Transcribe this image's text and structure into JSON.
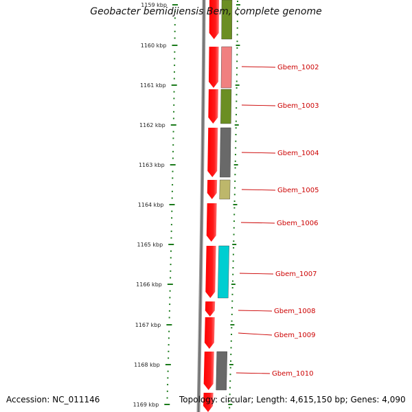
{
  "title": "Geobacter bemidjiensis Bem, complete genome",
  "footer": {
    "accession": "Accession: NC_011146",
    "topology": "Topology: circular; Length: 4,615,150 bp; Genes: 4,090"
  },
  "ruler": {
    "unit": "kbp",
    "ticks": [
      "1159 kbp",
      "1160 kbp",
      "1161 kbp",
      "1162 kbp",
      "1163 kbp",
      "1164 kbp",
      "1165 kbp",
      "1166 kbp",
      "1167 kbp",
      "1168 kbp",
      "1169 kbp"
    ]
  },
  "colors": {
    "gene_red": "#ff0000",
    "backbone": "#808080",
    "ruler_green": "#1a7a1a",
    "label_red": "#cc0000"
  },
  "genes": [
    {
      "label": "Gbem_1002",
      "feature_color": "#f08080"
    },
    {
      "label": "Gbem_1003",
      "feature_color": "#6b8e23"
    },
    {
      "label": "Gbem_1004",
      "feature_color": "#696969"
    },
    {
      "label": "Gbem_1005",
      "feature_color": "#bdb76b"
    },
    {
      "label": "Gbem_1006",
      "feature_color": ""
    },
    {
      "label": "Gbem_1007",
      "feature_color": "#00ced1"
    },
    {
      "label": "Gbem_1008",
      "feature_color": ""
    },
    {
      "label": "Gbem_1009",
      "feature_color": ""
    },
    {
      "label": "Gbem_1010",
      "feature_color": "#696969"
    }
  ],
  "top_partial_feature_color": "#6b8e23"
}
